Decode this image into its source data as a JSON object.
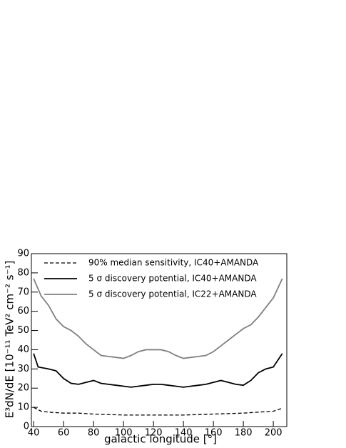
{
  "chart_data": {
    "type": "line",
    "xlabel": "galactic longitude [°]",
    "ylabel": "E³dN/dE [10⁻¹¹ TeV² cm⁻² s⁻¹]",
    "xlim": [
      38.5,
      209
    ],
    "xticks": [
      40,
      60,
      80,
      100,
      120,
      140,
      160,
      180,
      200
    ],
    "ylim": [
      0,
      90
    ],
    "yticks": [
      0,
      10,
      20,
      30,
      40,
      50,
      60,
      70,
      80,
      90
    ],
    "series": [
      {
        "name": "90% median sensitivity, IC40+AMANDA",
        "color": "#000000",
        "style": "dashed",
        "x": [
          40,
          45,
          50,
          60,
          70,
          80,
          100,
          120,
          140,
          160,
          180,
          190,
          200,
          206
        ],
        "values": [
          10,
          8,
          7.5,
          7,
          7,
          6.5,
          6,
          6,
          6,
          6.5,
          7,
          7.5,
          8,
          9.5
        ]
      },
      {
        "name": "5 σ discovery potential, IC40+AMANDA",
        "color": "#000000",
        "style": "solid",
        "x": [
          40,
          43,
          50,
          55,
          60,
          65,
          70,
          75,
          80,
          85,
          90,
          95,
          100,
          105,
          110,
          115,
          120,
          125,
          130,
          135,
          140,
          145,
          150,
          155,
          160,
          165,
          170,
          175,
          180,
          185,
          190,
          195,
          200,
          206
        ],
        "values": [
          38,
          31,
          30,
          29,
          25,
          22.5,
          22,
          23,
          24,
          22.5,
          22,
          21.5,
          21,
          20.5,
          21,
          21.5,
          22,
          22,
          21.5,
          21,
          20.5,
          21,
          21.5,
          22,
          23,
          24,
          23,
          22,
          21.5,
          24,
          28,
          30,
          31,
          38
        ]
      },
      {
        "name": "5 σ discovery potential, IC22+AMANDA",
        "color": "#808080",
        "style": "solid",
        "x": [
          40,
          45,
          50,
          55,
          60,
          65,
          70,
          75,
          80,
          85,
          90,
          95,
          100,
          105,
          110,
          115,
          120,
          125,
          130,
          135,
          140,
          145,
          150,
          155,
          160,
          165,
          170,
          175,
          180,
          185,
          190,
          195,
          200,
          206
        ],
        "values": [
          77,
          68,
          63,
          56,
          52,
          50,
          47,
          43,
          40,
          37,
          36.5,
          36,
          35.5,
          37,
          39,
          40,
          40,
          40,
          39,
          37,
          35.5,
          36,
          36.5,
          37,
          39,
          42,
          45,
          48,
          51,
          53,
          57,
          62,
          67,
          77
        ]
      }
    ]
  }
}
